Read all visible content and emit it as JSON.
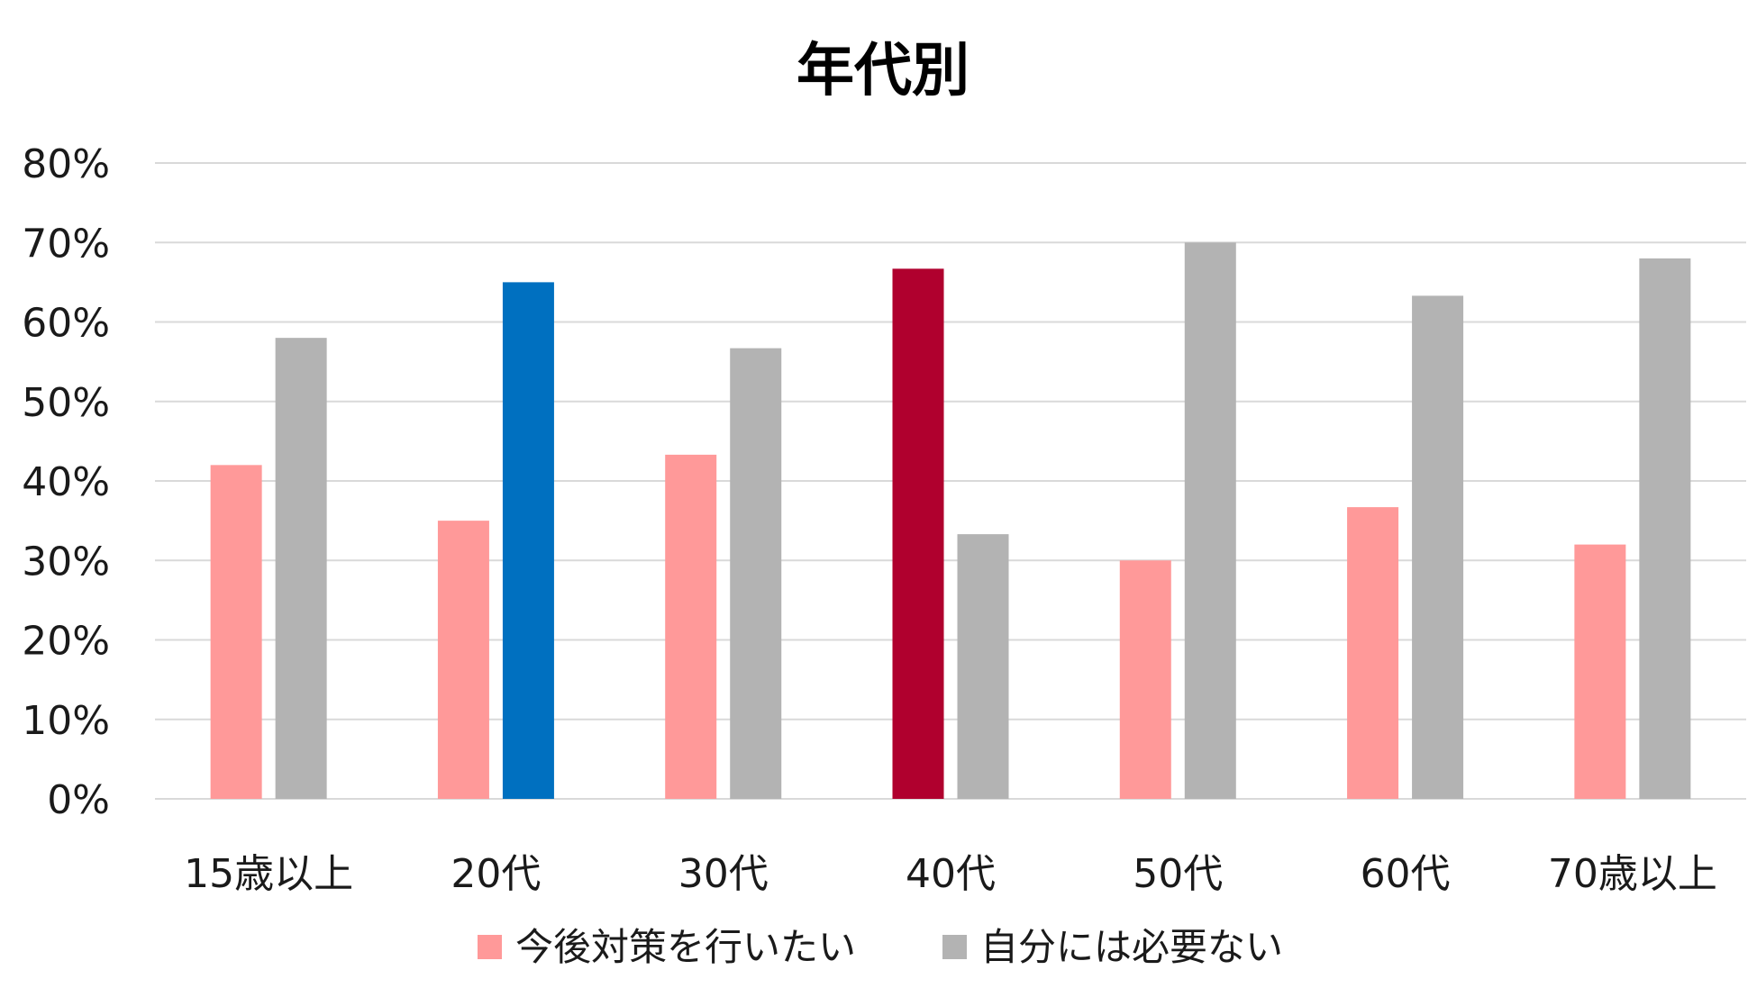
{
  "chart_data": {
    "type": "bar",
    "title": "年代別",
    "xlabel": "",
    "ylabel": "",
    "ylim": [
      0,
      80
    ],
    "yticks": [
      "0%",
      "10%",
      "20%",
      "30%",
      "40%",
      "50%",
      "60%",
      "70%",
      "80%"
    ],
    "categories": [
      "15歳以上",
      "20代",
      "30代",
      "40代",
      "50代",
      "60代",
      "70歳以上"
    ],
    "series": [
      {
        "name": "今後対策を行いたい",
        "color": "#ff9999",
        "values": [
          42,
          35,
          43.3,
          66.7,
          30,
          36.7,
          32
        ]
      },
      {
        "name": "自分には必要ない",
        "color": "#b3b3b3",
        "values": [
          58,
          65,
          56.7,
          33.3,
          70,
          63.3,
          68
        ]
      }
    ],
    "highlights": [
      {
        "series": 1,
        "category": 1,
        "color": "#0070c0"
      },
      {
        "series": 0,
        "category": 3,
        "color": "#b0002e"
      }
    ],
    "grid": true,
    "legend_position": "bottom"
  }
}
